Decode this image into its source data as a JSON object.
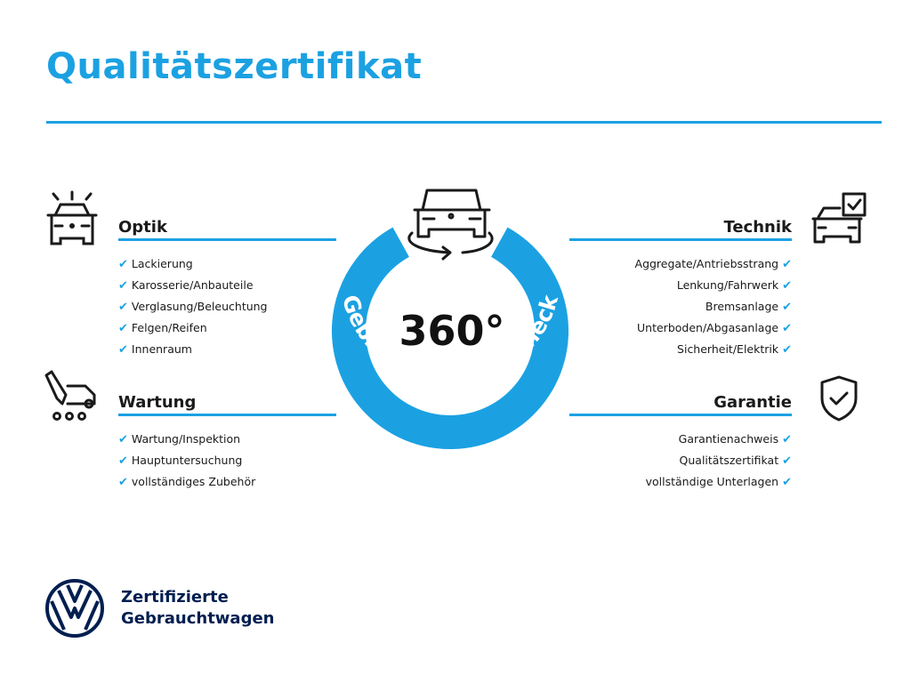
{
  "title": "Qualitätszertifikat",
  "badge": {
    "number": "360°",
    "label": "Gebrauchtwagen-Check"
  },
  "sections": {
    "optik": {
      "heading": "Optik",
      "items": [
        "Lackierung",
        "Karosserie/Anbauteile",
        "Verglasung/Beleuchtung",
        "Felgen/Reifen",
        "Innenraum"
      ]
    },
    "wartung": {
      "heading": "Wartung",
      "items": [
        "Wartung/Inspektion",
        "Hauptuntersuchung",
        "vollständiges Zubehör"
      ]
    },
    "technik": {
      "heading": "Technik",
      "items": [
        "Aggregate/Antriebsstrang",
        "Lenkung/Fahrwerk",
        "Bremsanlage",
        "Unterboden/Abgasanlage",
        "Sicherheit/Elektrik"
      ]
    },
    "garantie": {
      "heading": "Garantie",
      "items": [
        "Garantienachweis",
        "Qualitätszertifikat",
        "vollständige Unterlagen"
      ]
    }
  },
  "brand": {
    "line1": "Zertifizierte",
    "line2": "Gebrauchtwagen",
    "logo": "VW"
  },
  "colors": {
    "accent": "#1ba1e2",
    "brand_navy": "#001e50",
    "text": "#1a1a1a"
  }
}
